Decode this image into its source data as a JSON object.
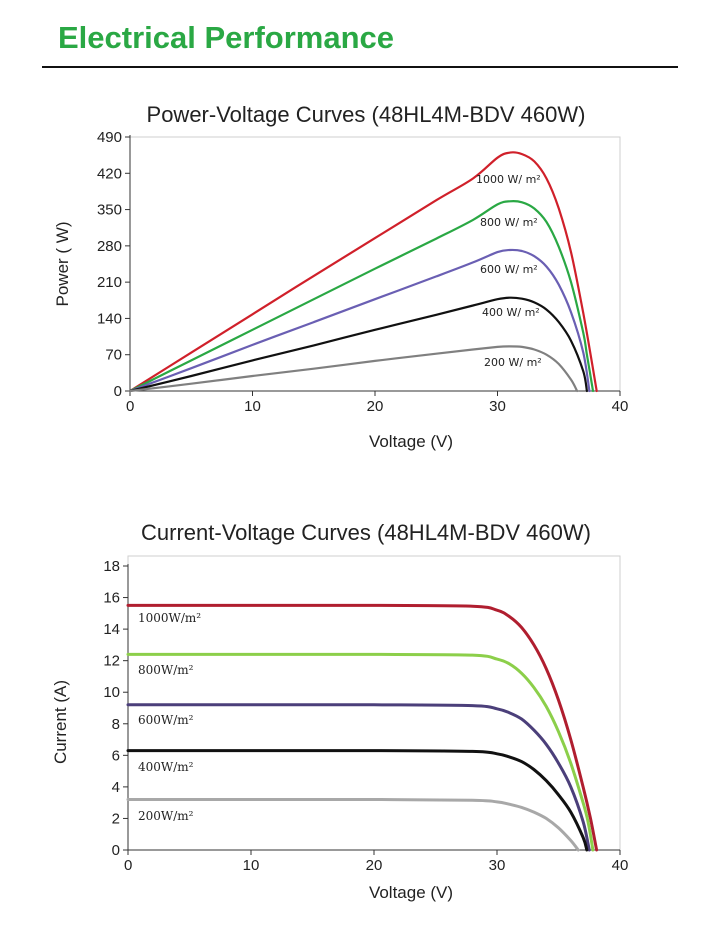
{
  "header": {
    "title": "Electrical Performance"
  },
  "colors": {
    "title_green": "#2aa844"
  },
  "chart_data": [
    {
      "id": "pv",
      "type": "line",
      "title": "Power-Voltage Curves (48HL4M-BDV 460W)",
      "xlabel": "Voltage (V)",
      "ylabel": "Power ( W)",
      "xlim": [
        0,
        40
      ],
      "ylim": [
        0,
        490
      ],
      "xticks": [
        0,
        10,
        20,
        30,
        40
      ],
      "yticks": [
        0,
        70,
        140,
        210,
        280,
        350,
        420,
        490
      ],
      "grid": false,
      "series": [
        {
          "name": "1000 W/ m²",
          "color": "#d0202a",
          "x": [
            0,
            5,
            10,
            15,
            20,
            25,
            28,
            30,
            31,
            32,
            33,
            34,
            35,
            36,
            37,
            37.6,
            38.1
          ],
          "y": [
            0,
            74,
            148,
            222,
            295,
            368,
            410,
            450,
            460,
            457,
            443,
            410,
            352,
            268,
            150,
            70,
            0
          ]
        },
        {
          "name": "800 W/ m²",
          "color": "#2aa844",
          "x": [
            0,
            5,
            10,
            15,
            20,
            25,
            28,
            30,
            31,
            32,
            33,
            34,
            35,
            36,
            37,
            37.3,
            37.8
          ],
          "y": [
            0,
            59,
            118,
            177,
            236,
            294,
            330,
            360,
            366,
            364,
            352,
            326,
            278,
            210,
            112,
            70,
            0
          ]
        },
        {
          "name": "600 W/ m²",
          "color": "#6a5fb3",
          "x": [
            0,
            5,
            10,
            15,
            20,
            25,
            28,
            30,
            31,
            32,
            33,
            34,
            35,
            36,
            37,
            37.5
          ],
          "y": [
            0,
            44,
            89,
            133,
            177,
            221,
            248,
            268,
            272,
            270,
            260,
            240,
            205,
            152,
            74,
            0
          ]
        },
        {
          "name": "400 W/ m²",
          "color": "#111111",
          "x": [
            0,
            5,
            10,
            15,
            20,
            25,
            28,
            30,
            31,
            32,
            33,
            34,
            35,
            36,
            37,
            37.3
          ],
          "y": [
            0,
            29,
            59,
            88,
            118,
            147,
            165,
            177,
            180,
            178,
            171,
            157,
            133,
            97,
            38,
            0
          ]
        },
        {
          "name": "200 W/ m²",
          "color": "#808080",
          "x": [
            0,
            5,
            10,
            15,
            20,
            25,
            28,
            30,
            31,
            32,
            33,
            34,
            35,
            36,
            36.5
          ],
          "y": [
            0,
            14,
            29,
            43,
            58,
            72,
            80,
            85,
            86,
            85,
            80,
            70,
            52,
            22,
            0
          ]
        }
      ]
    },
    {
      "id": "iv",
      "type": "line",
      "title": "Current-Voltage Curves (48HL4M-BDV 460W)",
      "xlabel": "Voltage (V)",
      "ylabel": "Current (A)",
      "xlim": [
        0,
        40
      ],
      "ylim": [
        0,
        18
      ],
      "xticks": [
        0,
        10,
        20,
        30,
        40
      ],
      "yticks": [
        0,
        2,
        4,
        6,
        8,
        10,
        12,
        14,
        16,
        18
      ],
      "grid": false,
      "series": [
        {
          "name": "1000W/m²",
          "color": "#b01e2f",
          "x": [
            0,
            10,
            20,
            28,
            30,
            31,
            32,
            33,
            34,
            35,
            36,
            37,
            37.6,
            38.1
          ],
          "y": [
            15.5,
            15.5,
            15.5,
            15.45,
            15.2,
            14.8,
            14.1,
            13.0,
            11.5,
            9.5,
            7.0,
            4.0,
            2.0,
            0
          ]
        },
        {
          "name": "800W/m²",
          "color": "#8ccf4a",
          "x": [
            0,
            10,
            20,
            28,
            30,
            31,
            32,
            33,
            34,
            35,
            36,
            37,
            37.4,
            37.8
          ],
          "y": [
            12.4,
            12.4,
            12.4,
            12.35,
            12.1,
            11.8,
            11.2,
            10.3,
            9.1,
            7.5,
            5.5,
            3.0,
            1.8,
            0
          ]
        },
        {
          "name": "600W/m²",
          "color": "#4b3f7a",
          "x": [
            0,
            10,
            20,
            28,
            30,
            31,
            32,
            33,
            34,
            35,
            36,
            37,
            37.5
          ],
          "y": [
            9.2,
            9.2,
            9.2,
            9.15,
            8.95,
            8.7,
            8.3,
            7.6,
            6.7,
            5.5,
            4.0,
            1.8,
            0
          ]
        },
        {
          "name": "400W/m²",
          "color": "#111111",
          "x": [
            0,
            10,
            20,
            28,
            30,
            31,
            32,
            33,
            34,
            35,
            36,
            37,
            37.3
          ],
          "y": [
            6.3,
            6.3,
            6.3,
            6.25,
            6.1,
            5.9,
            5.6,
            5.1,
            4.4,
            3.5,
            2.4,
            0.8,
            0
          ]
        },
        {
          "name": "200W/m²",
          "color": "#a8a8a8",
          "x": [
            0,
            10,
            20,
            28,
            30,
            31,
            32,
            33,
            34,
            35,
            36,
            36.6
          ],
          "y": [
            3.2,
            3.2,
            3.2,
            3.15,
            3.05,
            2.9,
            2.7,
            2.4,
            2.0,
            1.4,
            0.6,
            0
          ]
        }
      ]
    }
  ]
}
